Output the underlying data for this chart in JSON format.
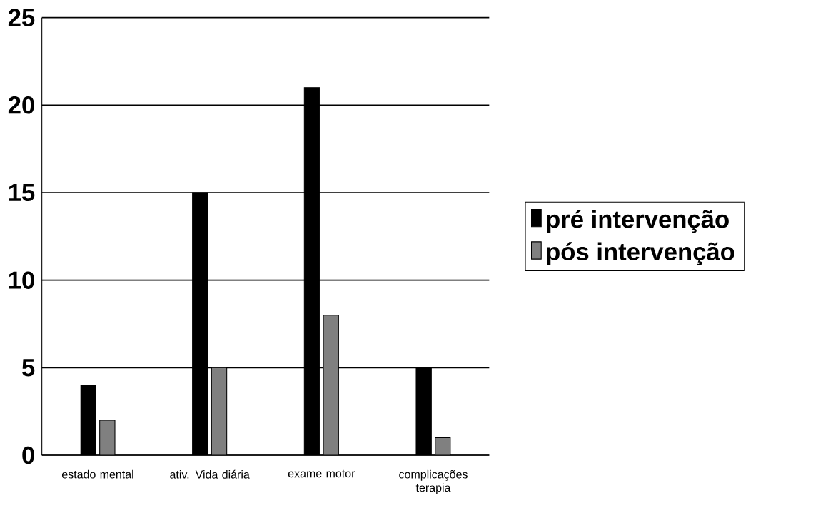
{
  "chart_data": {
    "type": "bar",
    "categories": [
      "estado mental",
      "ativ. Vida diária",
      "exame motor",
      "complicações terapia"
    ],
    "series": [
      {
        "name": "pré intervenção",
        "color": "#000000",
        "values": [
          4,
          15,
          21,
          5
        ]
      },
      {
        "name": "pós intervenção",
        "color": "#808080",
        "values": [
          2,
          5,
          8,
          1
        ]
      }
    ],
    "ylim": [
      0,
      25
    ],
    "yticks": [
      0,
      5,
      10,
      15,
      20,
      25
    ],
    "grid": "y",
    "legend": "right"
  }
}
